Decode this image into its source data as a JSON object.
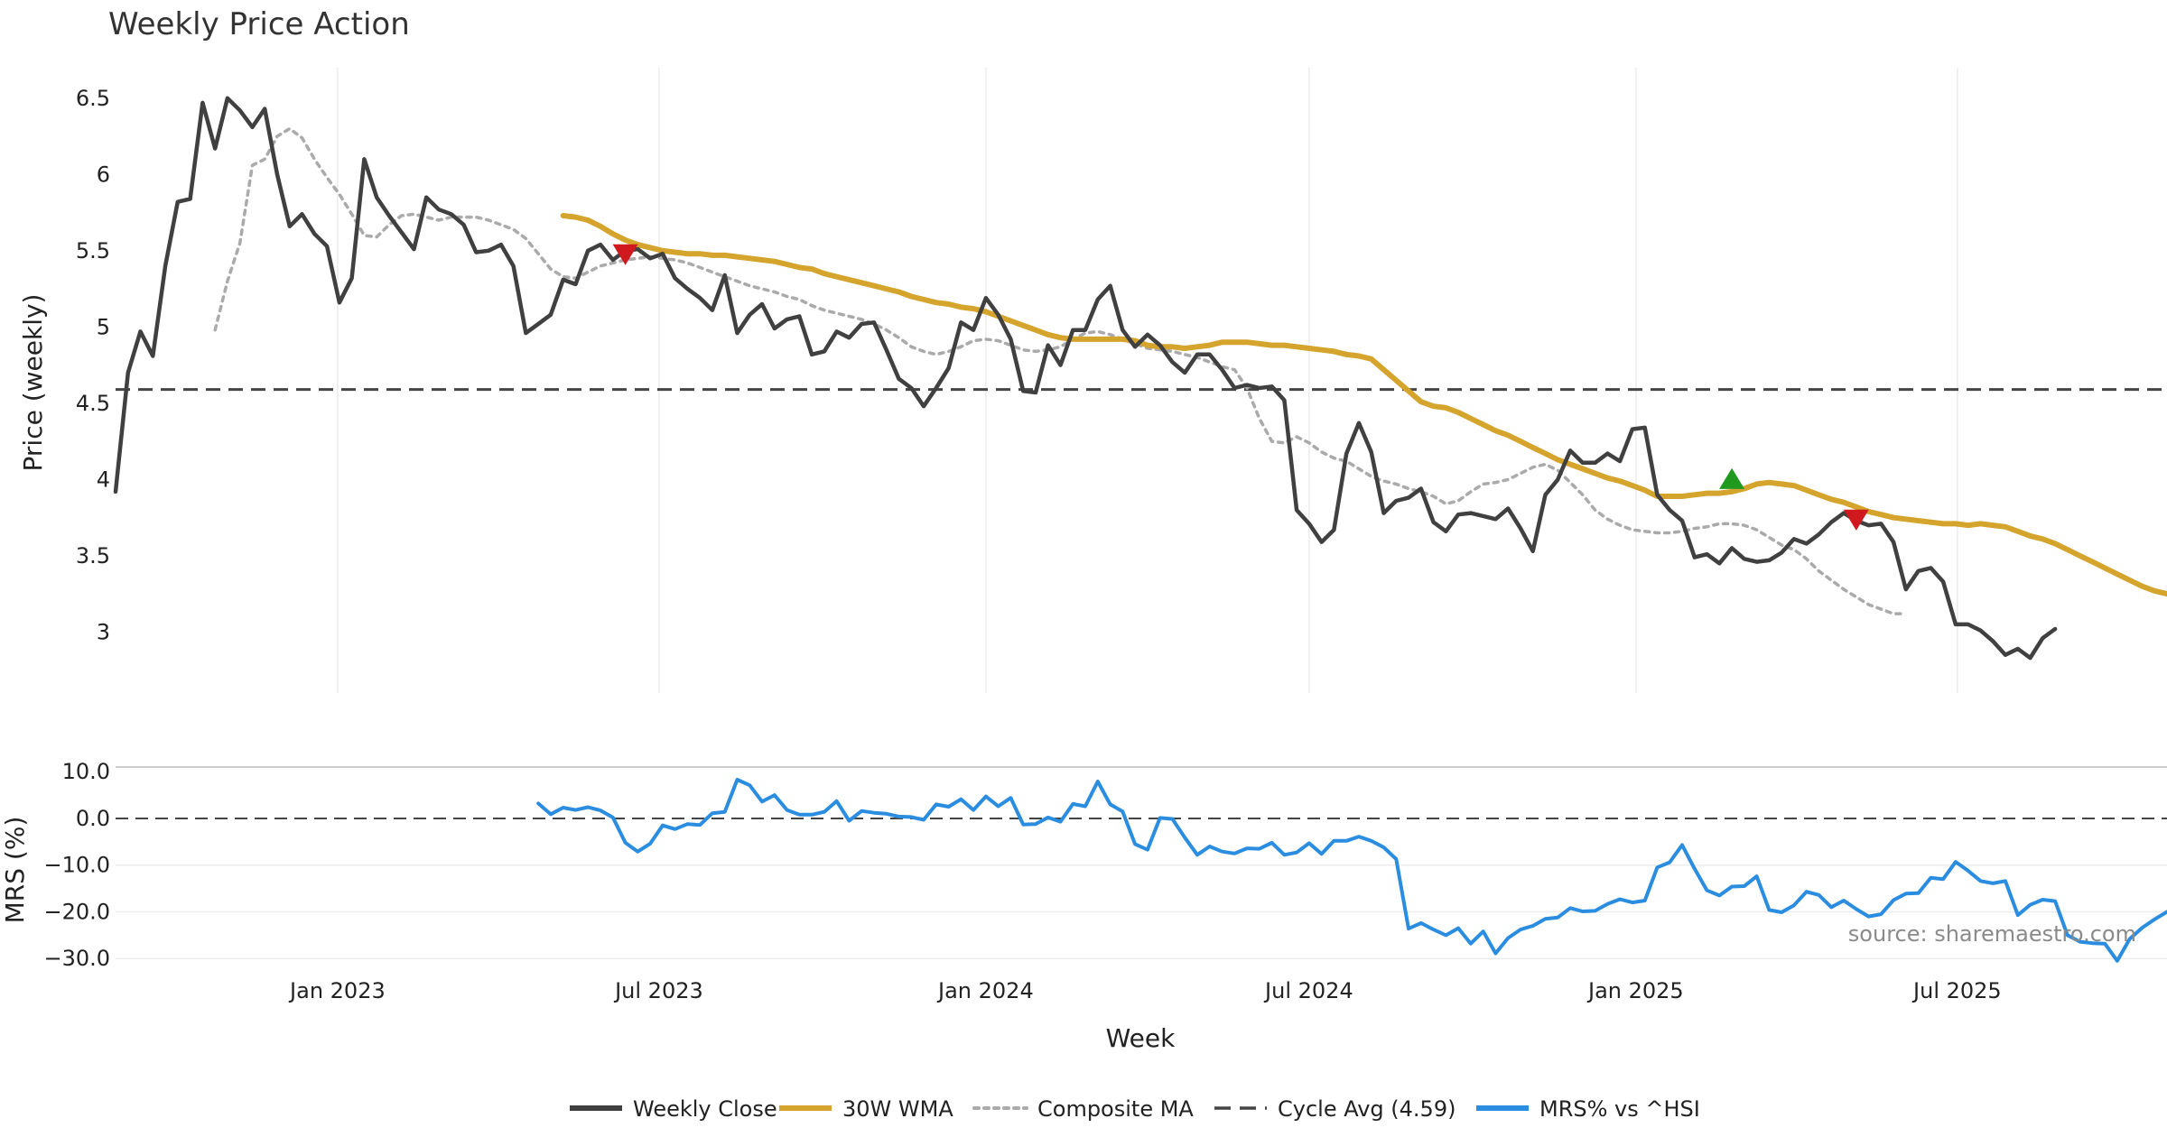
{
  "chart_data": {
    "type": "line",
    "title": "Weekly Price Action",
    "x_axis": {
      "label": "Week",
      "ticks": [
        "Jan 2023",
        "Jul 2023",
        "Jan 2024",
        "Jul 2024",
        "Jan 2025",
        "Jul 2025"
      ],
      "tick_dates": [
        "2023-01-01",
        "2023-07-01",
        "2024-01-01",
        "2024-07-01",
        "2025-01-01",
        "2025-07-01"
      ],
      "range": [
        "2022-08-29",
        "2025-10-27"
      ]
    },
    "panels": [
      {
        "name": "price",
        "ylabel": "Price (weekly)",
        "ylim": [
          2.6,
          6.7
        ],
        "yticks": [
          "6.5",
          "6",
          "5.5",
          "5",
          "4.5",
          "4",
          "3.5",
          "3"
        ],
        "grid": "vertical"
      },
      {
        "name": "mrs",
        "ylabel": "MRS (%)",
        "ylim": [
          -31.5,
          11
        ],
        "yticks": [
          "10.0",
          "0.0",
          "−10.0",
          "−20.0",
          "−30.0"
        ],
        "grid": "horizontal"
      }
    ],
    "reference_lines": [
      {
        "name": "Cycle Avg (4.59)",
        "panel": "price",
        "value": 4.59,
        "style": "dashed",
        "color": "#444444"
      },
      {
        "name": "zero",
        "panel": "mrs",
        "value": 0,
        "style": "dashed",
        "color": "#444444"
      }
    ],
    "series": [
      {
        "name": "Weekly Close",
        "panel": "price",
        "color": "#404040",
        "style": "solid",
        "start": "2022-08-29",
        "values": [
          3.92,
          4.7,
          4.97,
          4.81,
          5.4,
          5.82,
          5.84,
          6.47,
          6.17,
          6.5,
          6.42,
          6.31,
          6.43,
          6.0,
          5.66,
          5.74,
          5.61,
          5.53,
          5.16,
          5.32,
          6.1,
          5.85,
          5.73,
          5.62,
          5.51,
          5.85,
          5.77,
          5.74,
          5.67,
          5.49,
          5.5,
          5.54,
          5.4,
          4.96,
          5.02,
          5.08,
          5.31,
          5.28,
          5.5,
          5.54,
          5.44,
          5.5,
          5.51,
          5.45,
          5.48,
          5.32,
          5.25,
          5.19,
          5.11,
          5.34,
          4.96,
          5.08,
          5.15,
          4.99,
          5.05,
          5.07,
          4.82,
          4.84,
          4.97,
          4.93,
          5.02,
          5.03,
          4.85,
          4.66,
          4.6,
          4.48,
          4.6,
          4.73,
          5.03,
          4.98,
          5.19,
          5.08,
          4.92,
          4.58,
          4.57,
          4.88,
          4.75,
          4.98,
          4.98,
          5.18,
          5.27,
          4.98,
          4.87,
          4.95,
          4.88,
          4.77,
          4.7,
          4.82,
          4.82,
          4.72,
          4.6,
          4.62,
          4.6,
          4.61,
          4.52,
          3.8,
          3.71,
          3.59,
          3.67,
          4.17,
          4.37,
          4.18,
          3.78,
          3.86,
          3.88,
          3.94,
          3.72,
          3.66,
          3.77,
          3.78,
          3.76,
          3.74,
          3.81,
          3.68,
          3.53,
          3.9,
          4.0,
          4.19,
          4.11,
          4.11,
          4.17,
          4.12,
          4.33,
          4.34,
          3.9,
          3.8,
          3.73,
          3.49,
          3.51,
          3.45,
          3.55,
          3.48,
          3.46,
          3.47,
          3.52,
          3.61,
          3.58,
          3.64,
          3.72,
          3.78,
          3.73,
          3.7,
          3.71,
          3.59,
          3.28,
          3.4,
          3.42,
          3.33,
          3.05,
          3.05,
          3.01,
          2.94,
          2.85,
          2.89,
          2.83,
          2.96,
          3.02
        ]
      },
      {
        "name": "30W WMA",
        "panel": "price",
        "color": "#d4a42c",
        "style": "solid",
        "start": "2023-05-08",
        "values": [
          5.73,
          5.72,
          5.7,
          5.66,
          5.61,
          5.57,
          5.54,
          5.52,
          5.5,
          5.49,
          5.48,
          5.48,
          5.47,
          5.47,
          5.46,
          5.45,
          5.44,
          5.43,
          5.41,
          5.39,
          5.38,
          5.35,
          5.33,
          5.31,
          5.29,
          5.27,
          5.25,
          5.23,
          5.2,
          5.18,
          5.16,
          5.15,
          5.13,
          5.12,
          5.1,
          5.07,
          5.04,
          5.01,
          4.98,
          4.95,
          4.93,
          4.92,
          4.92,
          4.92,
          4.92,
          4.92,
          4.91,
          4.88,
          4.87,
          4.87,
          4.86,
          4.87,
          4.88,
          4.9,
          4.9,
          4.9,
          4.89,
          4.88,
          4.88,
          4.87,
          4.86,
          4.85,
          4.84,
          4.82,
          4.81,
          4.79,
          4.72,
          4.65,
          4.58,
          4.51,
          4.48,
          4.47,
          4.44,
          4.4,
          4.36,
          4.32,
          4.29,
          4.25,
          4.21,
          4.17,
          4.13,
          4.1,
          4.07,
          4.04,
          4.01,
          3.99,
          3.96,
          3.93,
          3.89,
          3.89,
          3.89,
          3.9,
          3.91,
          3.91,
          3.92,
          3.94,
          3.97,
          3.98,
          3.97,
          3.96,
          3.93,
          3.9,
          3.87,
          3.85,
          3.82,
          3.79,
          3.77,
          3.75,
          3.74,
          3.73,
          3.72,
          3.71,
          3.71,
          3.7,
          3.71,
          3.7,
          3.69,
          3.66,
          3.63,
          3.61,
          3.58,
          3.54,
          3.5,
          3.46,
          3.42,
          3.38,
          3.34,
          3.3,
          3.27,
          3.25
        ]
      },
      {
        "name": "Composite MA",
        "panel": "price",
        "color": "#aaaaaa",
        "style": "dotted",
        "start": "2022-10-24",
        "values": [
          4.98,
          5.3,
          5.55,
          6.06,
          6.1,
          6.25,
          6.3,
          6.24,
          6.1,
          5.98,
          5.87,
          5.74,
          5.6,
          5.59,
          5.67,
          5.73,
          5.74,
          5.72,
          5.7,
          5.72,
          5.72,
          5.72,
          5.7,
          5.67,
          5.64,
          5.58,
          5.48,
          5.38,
          5.33,
          5.32,
          5.36,
          5.4,
          5.42,
          5.44,
          5.45,
          5.46,
          5.45,
          5.44,
          5.42,
          5.39,
          5.36,
          5.33,
          5.3,
          5.27,
          5.25,
          5.23,
          5.2,
          5.18,
          5.14,
          5.11,
          5.09,
          5.07,
          5.05,
          5.02,
          4.98,
          4.93,
          4.87,
          4.84,
          4.82,
          4.84,
          4.87,
          4.91,
          4.92,
          4.91,
          4.88,
          4.85,
          4.84,
          4.85,
          4.87,
          4.92,
          4.96,
          4.97,
          4.95,
          4.92,
          4.89,
          4.86,
          4.85,
          4.84,
          4.82,
          4.8,
          4.77,
          4.74,
          4.72,
          4.6,
          4.4,
          4.25,
          4.24,
          4.28,
          4.24,
          4.18,
          4.14,
          4.12,
          4.07,
          4.02,
          3.99,
          3.97,
          3.94,
          3.92,
          3.89,
          3.84,
          3.86,
          3.92,
          3.97,
          3.98,
          4.0,
          4.04,
          4.08,
          4.1,
          4.06,
          3.98,
          3.9,
          3.8,
          3.74,
          3.7,
          3.67,
          3.66,
          3.65,
          3.65,
          3.66,
          3.68,
          3.69,
          3.71,
          3.71,
          3.7,
          3.67,
          3.62,
          3.57,
          3.54,
          3.48,
          3.4,
          3.34,
          3.28,
          3.23,
          3.18,
          3.15,
          3.12,
          3.12
        ]
      },
      {
        "name": "MRS% vs ^HSI",
        "panel": "mrs",
        "color": "#2b8de0",
        "style": "solid",
        "start": "2023-04-24",
        "values": [
          3.2,
          0.9,
          2.3,
          1.8,
          2.4,
          1.7,
          0.2,
          -5.2,
          -7.1,
          -5.4,
          -1.5,
          -2.3,
          -1.2,
          -1.4,
          1.1,
          1.4,
          8.3,
          7.1,
          3.6,
          5.0,
          1.8,
          0.8,
          0.8,
          1.4,
          3.7,
          -0.5,
          1.6,
          1.2,
          1.0,
          0.4,
          0.3,
          -0.3,
          3.0,
          2.5,
          4.1,
          1.8,
          4.7,
          2.6,
          4.4,
          -1.3,
          -1.2,
          0.2,
          -0.7,
          3.1,
          2.6,
          7.9,
          3.0,
          1.5,
          -5.5,
          -6.7,
          0.1,
          -0.1,
          -4.1,
          -7.8,
          -6.0,
          -7.1,
          -7.5,
          -6.4,
          -6.5,
          -5.2,
          -7.8,
          -7.3,
          -5.3,
          -7.6,
          -4.8,
          -4.8,
          -3.9,
          -4.8,
          -6.2,
          -8.7,
          -23.6,
          -22.4,
          -23.8,
          -25.0,
          -23.5,
          -26.8,
          -24.2,
          -28.9,
          -25.6,
          -23.8,
          -23.0,
          -21.5,
          -21.2,
          -19.2,
          -19.9,
          -19.8,
          -18.3,
          -17.3,
          -18.0,
          -17.6,
          -10.5,
          -9.4,
          -5.7,
          -10.8,
          -15.4,
          -16.5,
          -14.6,
          -14.5,
          -12.4,
          -19.6,
          -20.1,
          -18.6,
          -15.7,
          -16.4,
          -19.0,
          -17.6,
          -19.4,
          -21.0,
          -20.5,
          -17.5,
          -16.1,
          -16.0,
          -12.7,
          -13.0,
          -9.3,
          -11.2,
          -13.4,
          -13.9,
          -13.4,
          -20.7,
          -18.5,
          -17.4,
          -17.7,
          -25.0,
          -26.4,
          -26.7,
          -26.8,
          -30.5,
          -25.8,
          -23.4,
          -21.6,
          -20.0
        ]
      }
    ],
    "markers": [
      {
        "name": "sell signal",
        "panel": "price",
        "shape": "triangle-down",
        "color": "#d0191f",
        "date": "2023-06-12",
        "value": 5.48
      },
      {
        "name": "buy signal",
        "panel": "price",
        "shape": "triangle-up",
        "color": "#1f9a1f",
        "date": "2025-02-24",
        "value": 4.0
      },
      {
        "name": "sell signal",
        "panel": "price",
        "shape": "triangle-down",
        "color": "#d0191f",
        "date": "2025-05-05",
        "value": 3.74
      }
    ],
    "legend": {
      "placement": "bottom",
      "entries": [
        {
          "label": "Weekly Close",
          "color": "#404040",
          "style": "solid"
        },
        {
          "label": "30W WMA",
          "color": "#d4a42c",
          "style": "solid"
        },
        {
          "label": "Composite MA",
          "color": "#aaaaaa",
          "style": "dotted"
        },
        {
          "label": "Cycle Avg (4.59)",
          "color": "#444444",
          "style": "dashed"
        },
        {
          "label": "MRS% vs ^HSI",
          "color": "#2b8de0",
          "style": "solid"
        }
      ]
    },
    "annotations": [
      {
        "text": "source: sharemaestro.com",
        "placement": "bottom-right of MRS panel"
      }
    ]
  }
}
